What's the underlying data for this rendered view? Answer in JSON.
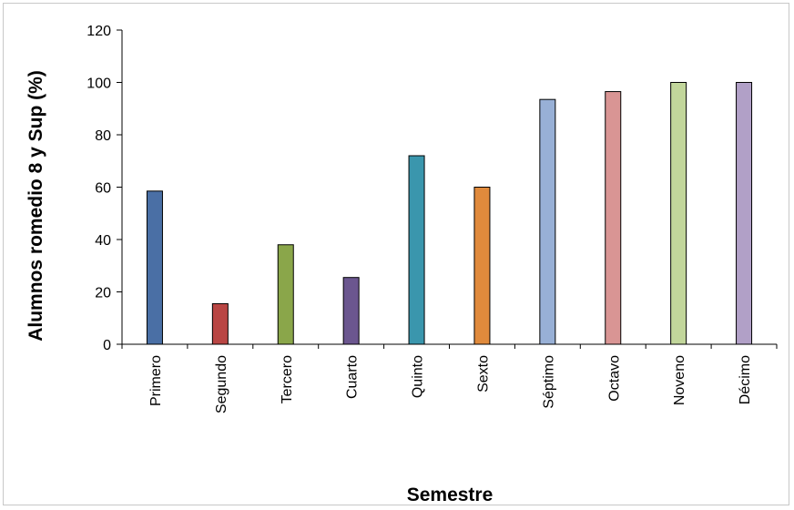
{
  "chart_data": {
    "type": "bar",
    "title": "",
    "xlabel": "Semestre",
    "ylabel": "Alumnos romedio 8 y Sup  (%)",
    "ylim": [
      0,
      120
    ],
    "yticks": [
      "0",
      "20",
      "40",
      "60",
      "80",
      "100",
      "120"
    ],
    "grid": false,
    "legend": "none",
    "categories": [
      "Primero",
      "Segundo",
      "Tercero",
      "Cuarto",
      "Quinto",
      "Sexto",
      "Séptimo",
      "Octavo",
      "Noveno",
      "Décimo"
    ],
    "values": [
      58.5,
      15.5,
      38,
      25.5,
      72,
      60,
      93.5,
      96.5,
      100,
      100
    ],
    "colors": [
      "#4a6fa5",
      "#b94644",
      "#8aa64a",
      "#6b568f",
      "#3a96ad",
      "#e08a3c",
      "#98b0d6",
      "#d99594",
      "#c2d69b",
      "#b1a0c7"
    ]
  }
}
